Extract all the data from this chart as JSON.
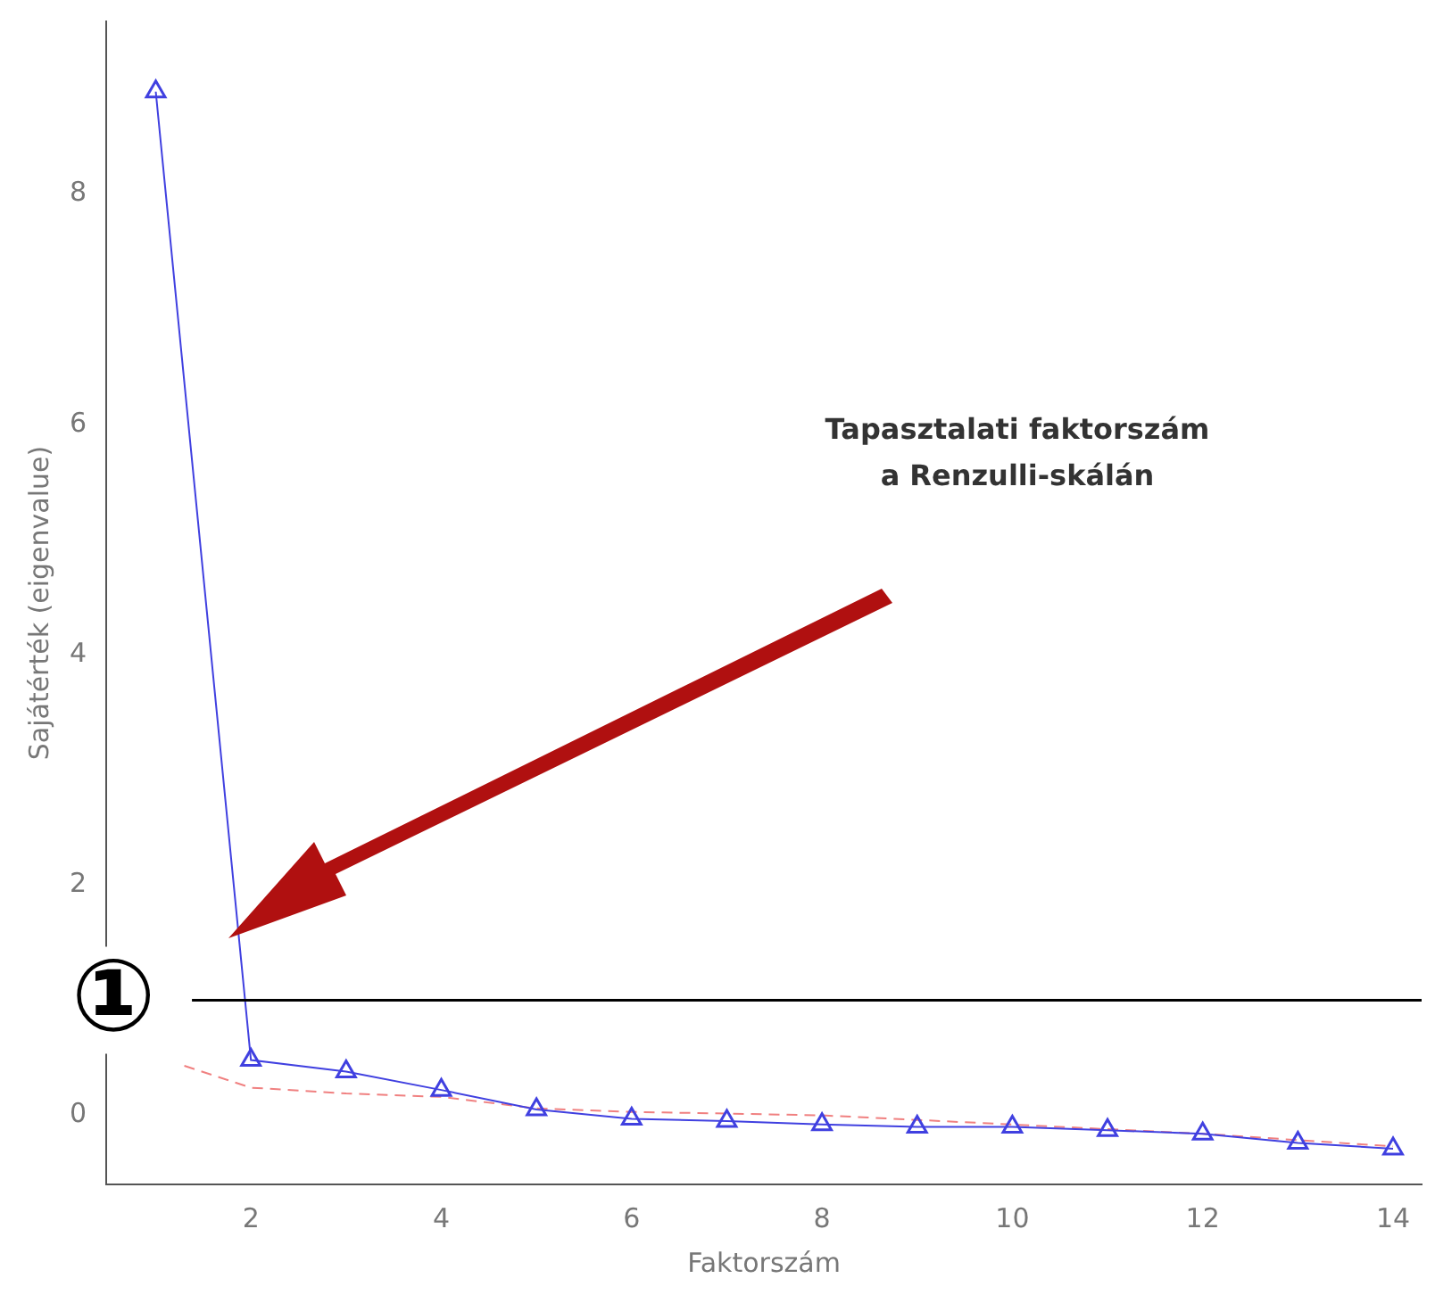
{
  "chart_data": {
    "type": "line",
    "xlabel": "Faktorszám",
    "ylabel": "Sajátérték (eigenvalue)",
    "xlim": [
      0.48,
      14.3
    ],
    "xticks": [
      2,
      4,
      6,
      8,
      10,
      12,
      14
    ],
    "ylim": [
      -0.6,
      9.5
    ],
    "yticks": [
      0,
      2,
      4,
      6,
      8
    ],
    "grid": false,
    "legend": false,
    "series": [
      {
        "color": "#4040e0",
        "marker": "triangle",
        "line_style": "solid",
        "x": [
          1,
          2,
          3,
          4,
          5,
          6,
          7,
          8,
          9,
          10,
          11,
          12,
          13,
          14
        ],
        "values": [
          8.89,
          0.48,
          0.38,
          0.22,
          0.05,
          -0.03,
          -0.05,
          -0.08,
          -0.1,
          -0.1,
          -0.13,
          -0.16,
          -0.24,
          -0.29
        ]
      },
      {
        "color": "#f08080",
        "marker": "none",
        "line_style": "dashed",
        "x": [
          1.3,
          2,
          3,
          4,
          5,
          6,
          8,
          10,
          12,
          14
        ],
        "values": [
          0.43,
          0.24,
          0.19,
          0.16,
          0.06,
          0.03,
          0,
          -0.08,
          -0.16,
          -0.27
        ]
      }
    ],
    "ref_lines": [
      {
        "axis": "y",
        "value": 1,
        "label": "①",
        "color": "#000000"
      }
    ],
    "annotations": [
      "Tapasztalati faktorszám\na Renzulli-skálán"
    ]
  }
}
